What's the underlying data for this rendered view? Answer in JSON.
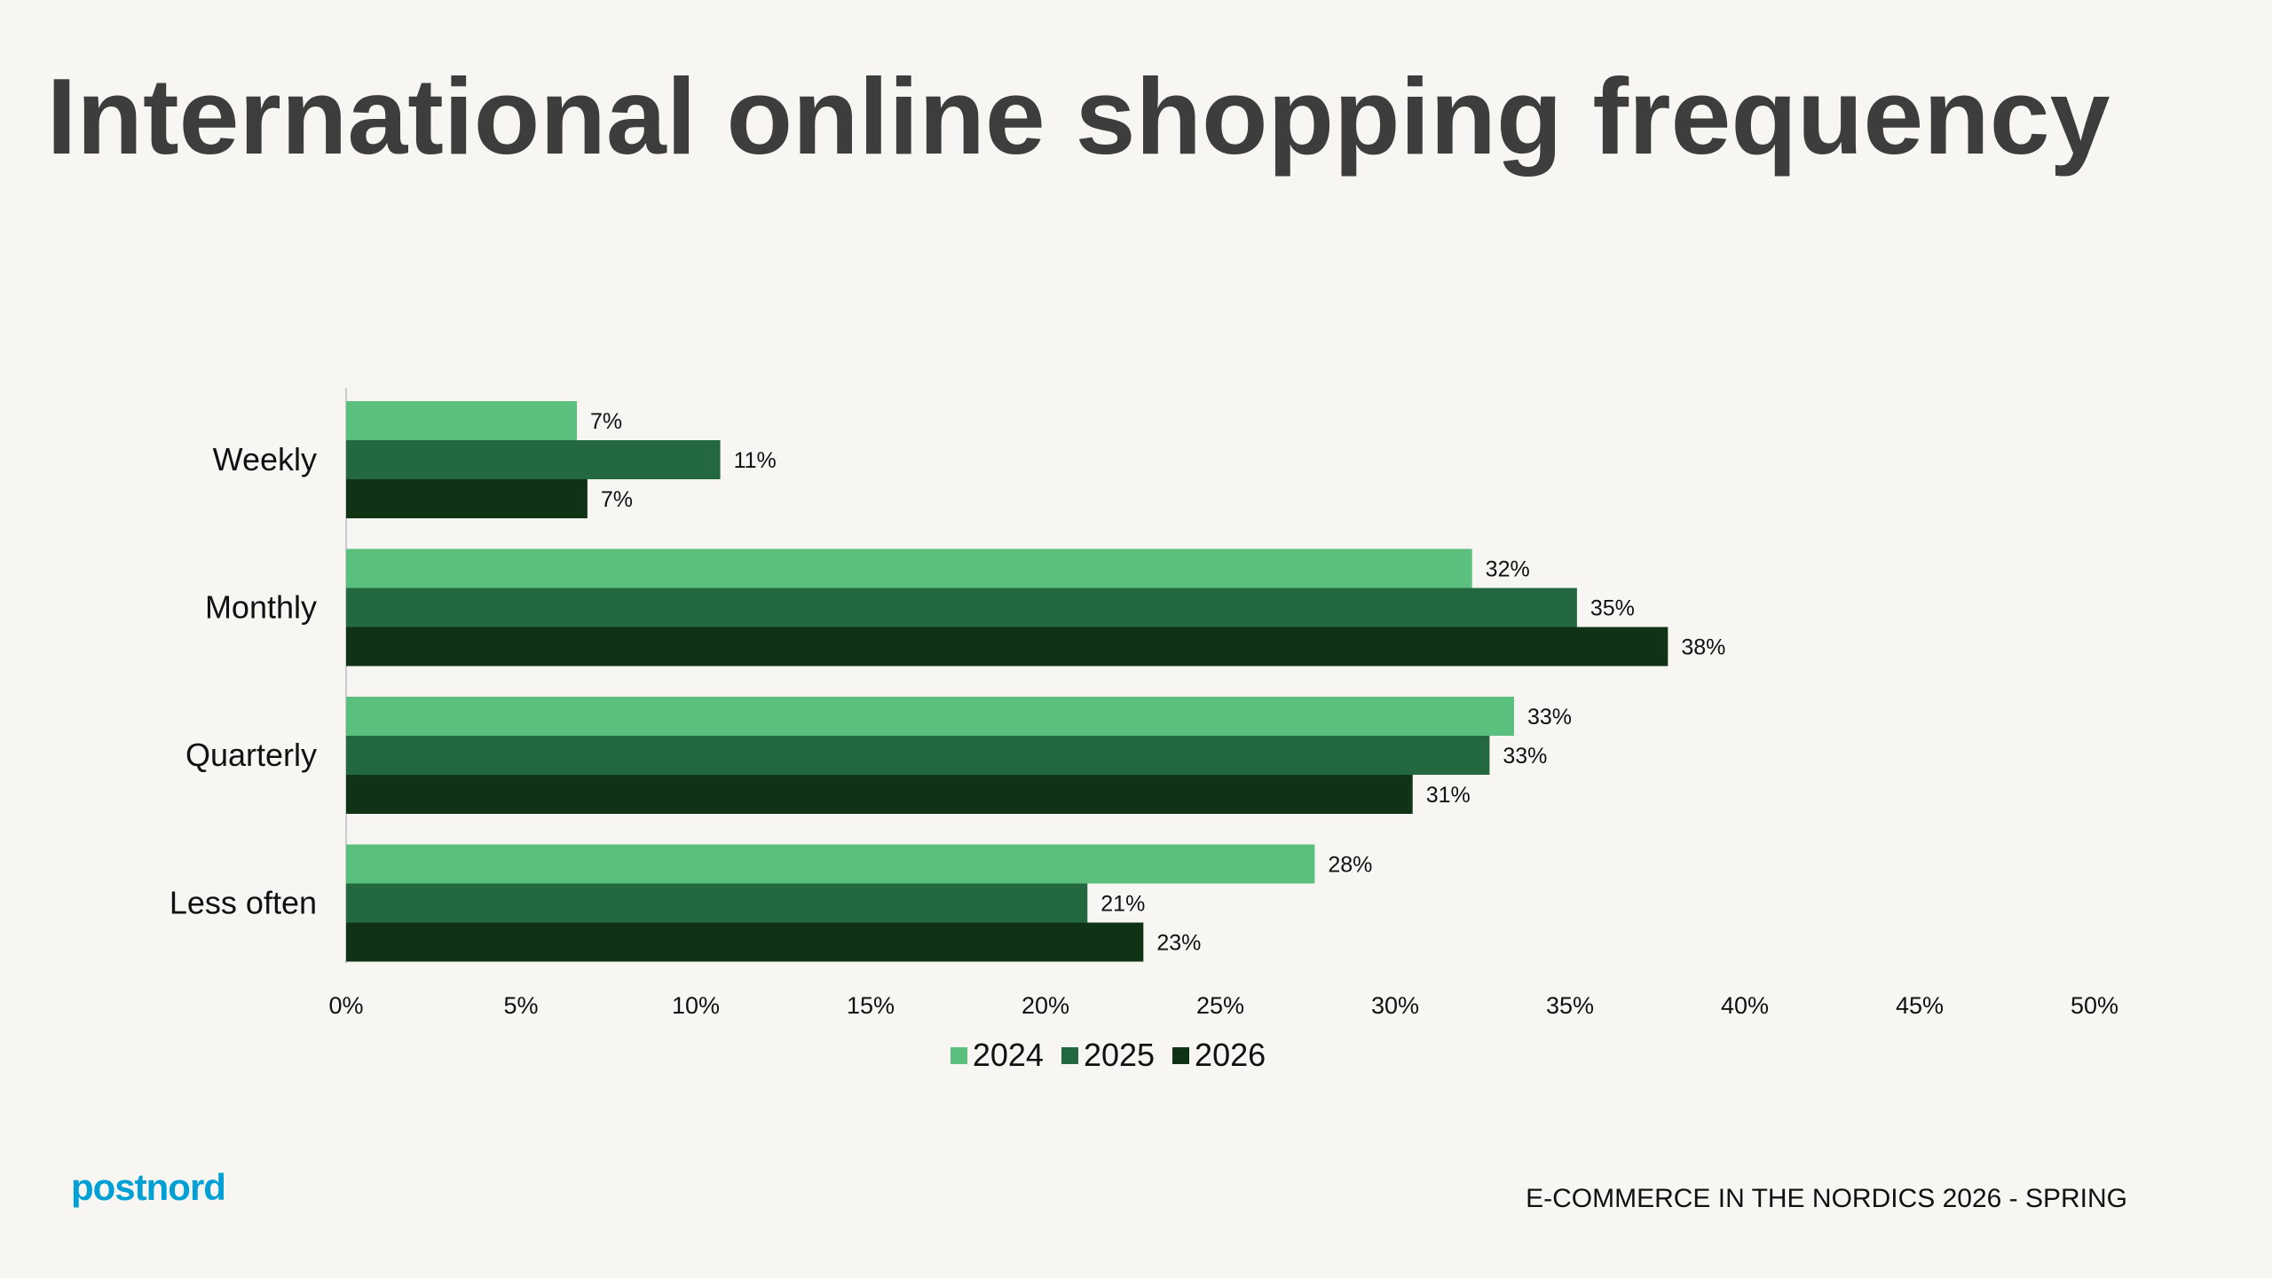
{
  "title": "International online shopping frequency",
  "brand": "postnord",
  "footer": "E-COMMERCE IN THE NORDICS 2026 - SPRING",
  "chart_data": {
    "type": "bar",
    "orientation": "horizontal",
    "categories": [
      "Weekly",
      "Monthly",
      "Quarterly",
      "Less often"
    ],
    "series": [
      {
        "name": "2024",
        "color": "#5bbf7e",
        "values": [
          6.6,
          32.2,
          33.4,
          27.7
        ],
        "labels": [
          "7%",
          "32%",
          "33%",
          "28%"
        ]
      },
      {
        "name": "2025",
        "color": "#246840",
        "values": [
          10.7,
          35.2,
          32.7,
          21.2
        ],
        "labels": [
          "11%",
          "35%",
          "33%",
          "21%"
        ]
      },
      {
        "name": "2026",
        "color": "#0f3314",
        "values": [
          6.9,
          37.8,
          30.5,
          22.8
        ],
        "labels": [
          "7%",
          "38%",
          "31%",
          "23%"
        ]
      }
    ],
    "xlim": [
      0,
      50
    ],
    "xticks": [
      "0%",
      "5%",
      "10%",
      "15%",
      "20%",
      "25%",
      "30%",
      "35%",
      "40%",
      "45%",
      "50%"
    ],
    "legend_position": "bottom",
    "grid": false
  }
}
